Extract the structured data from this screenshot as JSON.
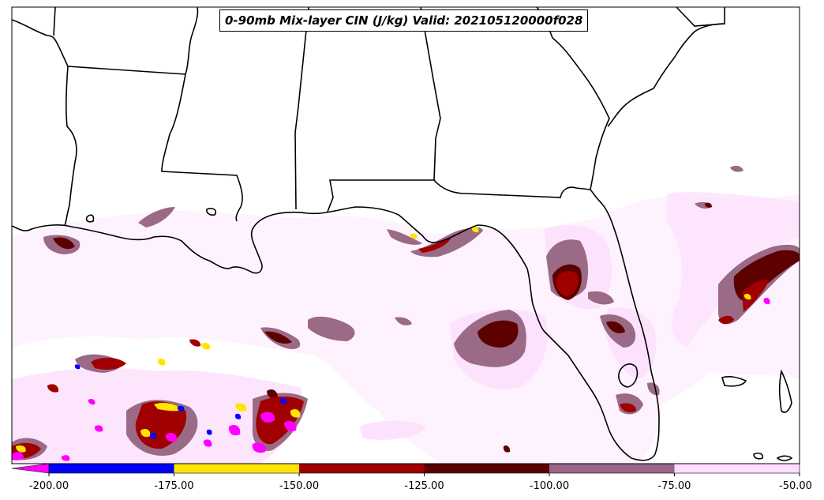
{
  "title": "0-90mb Mix-layer CIN (J/kg) Valid: 202105120000f028",
  "colorbar": {
    "ticks": [
      "-200.00",
      "-175.00",
      "-150.00",
      "-125.00",
      "-100.00",
      "-75.00",
      "-50.00"
    ],
    "bins": [
      {
        "range": [
          -200,
          -175
        ],
        "color": "#0000ff"
      },
      {
        "range": [
          -175,
          -150
        ],
        "color": "#ffe600"
      },
      {
        "range": [
          -150,
          -125
        ],
        "color": "#a00000"
      },
      {
        "range": [
          -125,
          -100
        ],
        "color": "#5a0000"
      },
      {
        "range": [
          -100,
          -75
        ],
        "color": "#996688"
      },
      {
        "range": [
          -75,
          -50
        ],
        "color": "#ffddff"
      }
    ],
    "under_color": "#ff00ff"
  },
  "colors": {
    "light": "#fde2fd",
    "mauve": "#9a6a86",
    "dark_red": "#5c0000",
    "red": "#a00000",
    "yellow": "#ffe600",
    "blue": "#0000ff",
    "magenta": "#ff00ff"
  }
}
